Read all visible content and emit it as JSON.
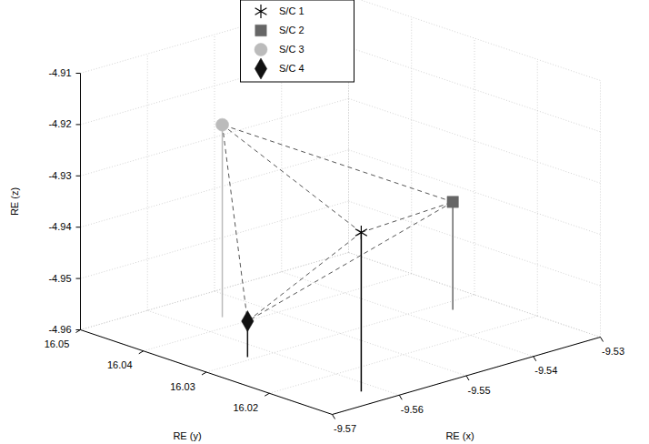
{
  "chart_data": {
    "type": "scatter3d",
    "xlabel": "RE (x)",
    "ylabel": "RE (y)",
    "zlabel": "RE (z)",
    "xlim": [
      -9.57,
      -9.53
    ],
    "xticks": [
      -9.57,
      -9.56,
      -9.55,
      -9.54,
      -9.53
    ],
    "ylim": [
      16.01,
      16.05
    ],
    "yticks": [
      16.02,
      16.03,
      16.04,
      16.05
    ],
    "zlim": [
      -4.96,
      -4.91
    ],
    "zticks": [
      -4.96,
      -4.95,
      -4.94,
      -4.93,
      -4.92,
      -4.91
    ],
    "grid": true,
    "legend": "top",
    "line_style": "dashed",
    "series": [
      {
        "name": "S/C 1",
        "color": "#000000",
        "marker": "asterisk",
        "x": [
          -9.5622
        ],
        "y": [
          16.0137
        ],
        "z": [
          -4.929
        ]
      },
      {
        "name": "S/C 2",
        "color": "#666666",
        "marker": "square",
        "x": [
          -9.5353
        ],
        "y": [
          16.0278
        ],
        "z": [
          -4.939
        ]
      },
      {
        "name": "S/C 3",
        "color": "#bbbbbb",
        "marker": "circle",
        "x": [
          -9.5556
        ],
        "y": [
          16.0428
        ],
        "z": [
          -4.9225
        ]
      },
      {
        "name": "S/C 4",
        "color": "#111111",
        "marker": "diamond",
        "x": [
          -9.5631
        ],
        "y": [
          16.0308
        ],
        "z": [
          -4.953
        ]
      }
    ]
  }
}
